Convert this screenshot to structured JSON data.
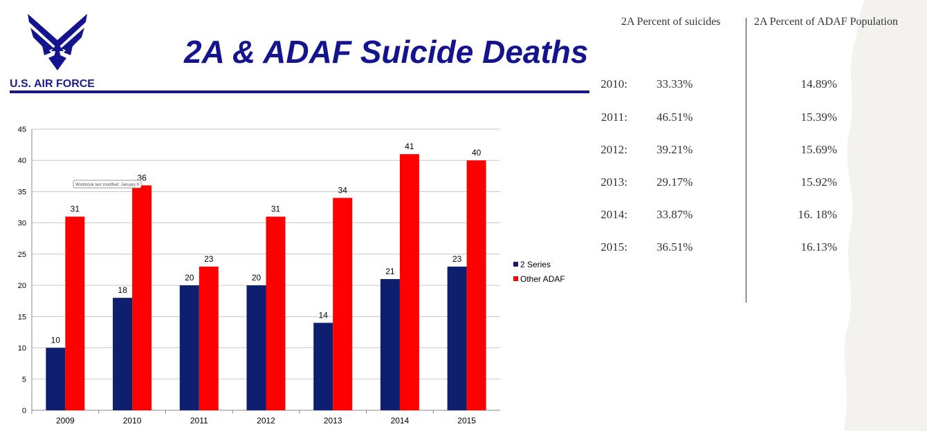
{
  "header": {
    "brand": "U.S. AIR FORCE",
    "title": "2A & ADAF Suicide Deaths"
  },
  "colors": {
    "navy": "#0d1f6e",
    "red": "#ff0000",
    "title": "#14148f"
  },
  "chart_data": {
    "type": "bar",
    "title": "",
    "categories": [
      "2009",
      "2010",
      "2011",
      "2012",
      "2013",
      "2014",
      "2015"
    ],
    "series": [
      {
        "name": "2 Series",
        "values": [
          10,
          18,
          20,
          20,
          14,
          21,
          23
        ],
        "color": "#0d1f6e"
      },
      {
        "name": "Other ADAF",
        "values": [
          31,
          36,
          23,
          31,
          34,
          41,
          40
        ],
        "color": "#ff0000"
      }
    ],
    "ylim": [
      0,
      45
    ],
    "yticks": [
      0,
      5,
      10,
      15,
      20,
      25,
      30,
      35,
      40,
      45
    ],
    "grid": true,
    "legend": "right",
    "annotation": "Workbook last modified: January 9"
  },
  "table": {
    "headers": [
      "2A Percent of suicides",
      "2A Percent of ADAF Population"
    ],
    "rows": [
      {
        "year": "2010:",
        "suicides": "33.33%",
        "population": "14.89%"
      },
      {
        "year": "2011:",
        "suicides": "46.51%",
        "population": "15.39%"
      },
      {
        "year": "2012:",
        "suicides": "39.21%",
        "population": "15.69%"
      },
      {
        "year": "2013:",
        "suicides": "29.17%",
        "population": "15.92%"
      },
      {
        "year": "2014:",
        "suicides": "33.87%",
        "population": "16. 18%"
      },
      {
        "year": "2015:",
        "suicides": "36.51%",
        "population": "16.13%"
      }
    ]
  }
}
